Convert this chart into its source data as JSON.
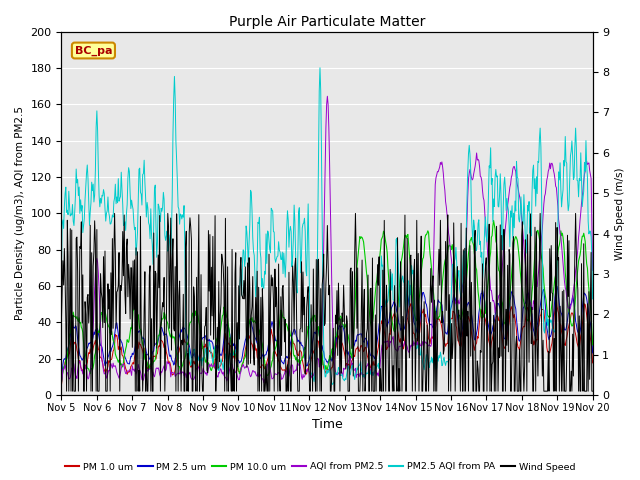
{
  "title": "Purple Air Particulate Matter",
  "xlabel": "Time",
  "ylabel_left": "Particle Density (ug/m3), AQI from PM2.5",
  "ylabel_right": "Wind Speed (m/s)",
  "ylim_left": [
    0,
    200
  ],
  "ylim_right": [
    0.0,
    9.0
  ],
  "yticks_left": [
    0,
    20,
    40,
    60,
    80,
    100,
    120,
    140,
    160,
    180,
    200
  ],
  "yticks_right": [
    0.0,
    1.0,
    2.0,
    3.0,
    4.0,
    5.0,
    6.0,
    7.0,
    8.0,
    9.0
  ],
  "xtick_labels": [
    "Nov 5",
    "Nov 6",
    "Nov 7",
    "Nov 8",
    "Nov 9",
    "Nov 10",
    "Nov 11",
    "Nov 12",
    "Nov 13",
    "Nov 14",
    "Nov 15",
    "Nov 16",
    "Nov 17",
    "Nov 18",
    "Nov 19",
    "Nov 20"
  ],
  "legend_labels": [
    "PM 1.0 um",
    "PM 2.5 um",
    "PM 10.0 um",
    "AQI from PM2.5",
    "PM2.5 AQI from PA",
    "Wind Speed"
  ],
  "legend_colors": [
    "#cc0000",
    "#0000cc",
    "#00cc00",
    "#9900cc",
    "#00cccc",
    "#000000"
  ],
  "box_label": "BC_pa",
  "box_facecolor": "#ffff99",
  "box_edgecolor": "#cc8800",
  "box_textcolor": "#aa0000",
  "background_gray": "#e8e8e8",
  "n_points": 720,
  "seed": 42
}
